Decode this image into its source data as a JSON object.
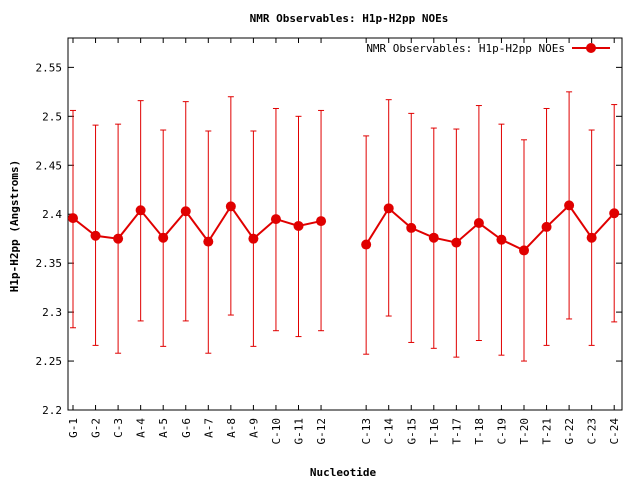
{
  "chart_data": {
    "type": "line",
    "title": "NMR Observables: H1p-H2pp NOEs",
    "xlabel": "Nucleotide",
    "ylabel": "H1p-H2pp (Angstroms)",
    "ylim": [
      2.2,
      2.58
    ],
    "yticks": [
      2.2,
      2.25,
      2.3,
      2.35,
      2.4,
      2.45,
      2.5,
      2.55
    ],
    "ytick_labels": [
      "2.2",
      "2.25",
      "2.3",
      "2.35",
      "2.4",
      "2.45",
      "2.5",
      "2.55"
    ],
    "grid": false,
    "legend_position": "top-right",
    "series_color": "#e00000",
    "categories": [
      "G-1",
      "G-2",
      "C-3",
      "A-4",
      "A-5",
      "G-6",
      "A-7",
      "A-8",
      "A-9",
      "C-10",
      "G-11",
      "G-12",
      "",
      "C-13",
      "C-14",
      "G-15",
      "T-16",
      "T-17",
      "T-18",
      "C-19",
      "T-20",
      "T-21",
      "G-22",
      "C-23",
      "C-24"
    ],
    "series": [
      {
        "name": "NMR Observables: H1p-H2pp NOEs",
        "values": [
          2.396,
          2.378,
          2.375,
          2.404,
          2.376,
          2.403,
          2.372,
          2.408,
          2.375,
          2.395,
          2.388,
          2.393,
          null,
          2.369,
          2.406,
          2.386,
          2.376,
          2.371,
          2.391,
          2.374,
          2.363,
          2.387,
          2.409,
          2.376,
          2.401
        ],
        "error_low": [
          2.284,
          2.266,
          2.258,
          2.291,
          2.265,
          2.291,
          2.258,
          2.297,
          2.265,
          2.281,
          2.275,
          2.281,
          null,
          2.257,
          2.296,
          2.269,
          2.263,
          2.254,
          2.271,
          2.256,
          2.25,
          2.266,
          2.293,
          2.266,
          2.29
        ],
        "error_high": [
          2.506,
          2.491,
          2.492,
          2.516,
          2.486,
          2.515,
          2.485,
          2.52,
          2.485,
          2.508,
          2.5,
          2.506,
          null,
          2.48,
          2.517,
          2.503,
          2.488,
          2.487,
          2.511,
          2.492,
          2.476,
          2.508,
          2.525,
          2.486,
          2.512
        ]
      }
    ]
  }
}
